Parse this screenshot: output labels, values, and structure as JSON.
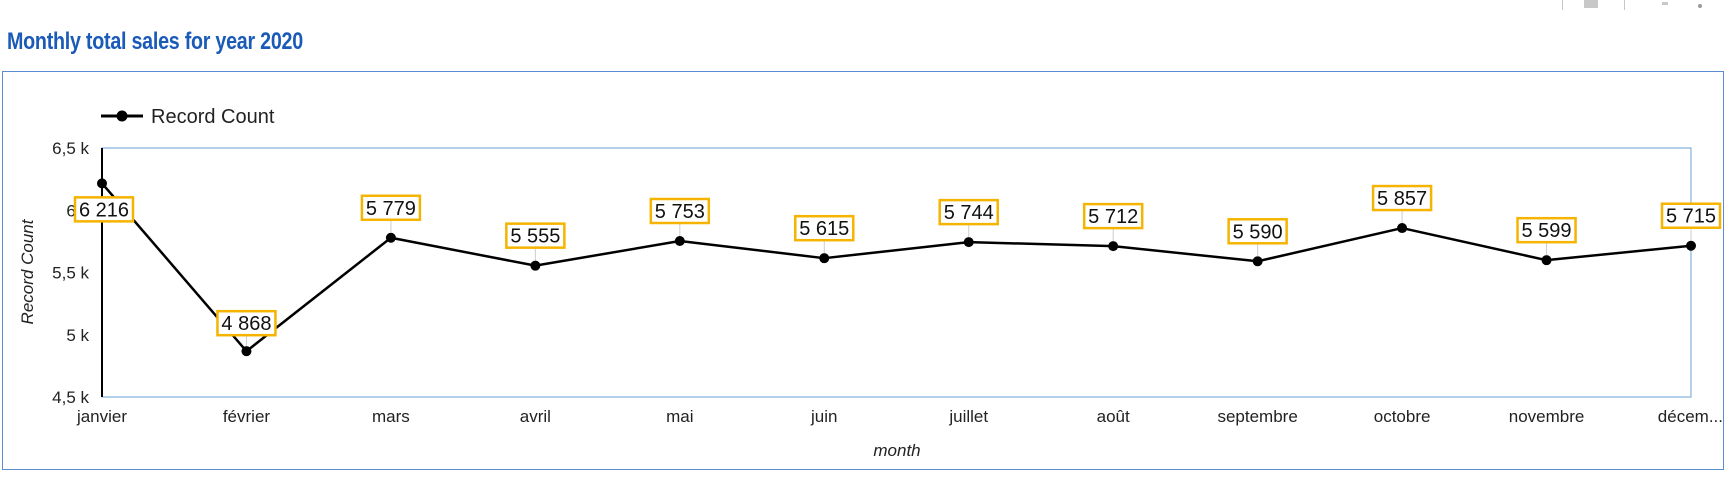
{
  "page": {
    "title": "Monthly total sales for year 2020"
  },
  "chart_data": {
    "type": "line",
    "title": "",
    "xlabel": "month",
    "ylabel": "Record Count",
    "categories": [
      "janvier",
      "février",
      "mars",
      "avril",
      "mai",
      "juin",
      "juillet",
      "août",
      "septembre",
      "octobre",
      "novembre",
      "décem..."
    ],
    "series": [
      {
        "name": "Record Count",
        "values": [
          6216,
          4868,
          5779,
          5555,
          5753,
          5615,
          5744,
          5712,
          5590,
          5857,
          5599,
          5715
        ],
        "labels": [
          "6 216",
          "4 868",
          "5 779",
          "5 555",
          "5 753",
          "5 615",
          "5 744",
          "5 712",
          "5 590",
          "5 857",
          "5 599",
          "5 715"
        ]
      }
    ],
    "ylim": [
      4500,
      6500
    ],
    "yticks": [
      4500,
      5000,
      5500,
      6000,
      6500
    ],
    "ytick_labels": [
      "4,5 k",
      "5 k",
      "5,5 k",
      "6 k",
      "6,5 k"
    ],
    "legend": "top-left",
    "grid": false,
    "colors": {
      "line": "#000000",
      "label_bg": "#ffffff",
      "label_border": "#f5b400",
      "plot_border": "#6aa0d8"
    }
  }
}
